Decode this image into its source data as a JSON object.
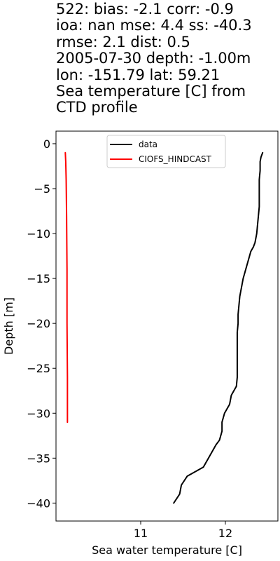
{
  "title_lines": [
    "522: bias: -2.1  corr: -0.9",
    "ioa: nan  mse: 4.4  ss: -40.3",
    "rmse: 2.1  dist: 0.5",
    "2005-07-30 depth: -1.00m",
    "lon: -151.79 lat: 59.21",
    "Sea temperature [C] from",
    "CTD profile"
  ],
  "chart_data": {
    "type": "line",
    "xlabel": "Sea water temperature [C]",
    "ylabel": "Depth [m]",
    "xlim": [
      10.0,
      12.62
    ],
    "ylim": [
      -42,
      1.4
    ],
    "xticks": [
      11,
      12
    ],
    "yticks": [
      0,
      -5,
      -10,
      -15,
      -20,
      -25,
      -30,
      -35,
      -40
    ],
    "legend_loc": "upper center",
    "series": [
      {
        "name": "data",
        "color": "#000000",
        "points": [
          [
            12.44,
            -1
          ],
          [
            12.42,
            -1.5
          ],
          [
            12.41,
            -2
          ],
          [
            12.41,
            -3
          ],
          [
            12.4,
            -4
          ],
          [
            12.4,
            -5
          ],
          [
            12.4,
            -6
          ],
          [
            12.4,
            -7
          ],
          [
            12.39,
            -8
          ],
          [
            12.38,
            -9
          ],
          [
            12.37,
            -10
          ],
          [
            12.35,
            -11
          ],
          [
            12.33,
            -11.5
          ],
          [
            12.3,
            -12
          ],
          [
            12.27,
            -13
          ],
          [
            12.24,
            -14
          ],
          [
            12.21,
            -15
          ],
          [
            12.19,
            -16
          ],
          [
            12.17,
            -17
          ],
          [
            12.16,
            -18
          ],
          [
            12.15,
            -19
          ],
          [
            12.15,
            -20
          ],
          [
            12.14,
            -21
          ],
          [
            12.14,
            -22
          ],
          [
            12.14,
            -23
          ],
          [
            12.14,
            -24
          ],
          [
            12.14,
            -25
          ],
          [
            12.14,
            -26
          ],
          [
            12.13,
            -27
          ],
          [
            12.1,
            -27.5
          ],
          [
            12.07,
            -28
          ],
          [
            12.05,
            -29
          ],
          [
            11.99,
            -30
          ],
          [
            11.96,
            -31
          ],
          [
            11.96,
            -32
          ],
          [
            11.93,
            -33
          ],
          [
            11.89,
            -33.5
          ],
          [
            11.86,
            -34
          ],
          [
            11.8,
            -35
          ],
          [
            11.74,
            -36
          ],
          [
            11.55,
            -37
          ],
          [
            11.48,
            -38
          ],
          [
            11.46,
            -39
          ],
          [
            11.39,
            -40
          ]
        ]
      },
      {
        "name": "CIOFS_HINDCAST",
        "color": "#ff0000",
        "points": [
          [
            10.11,
            -1
          ],
          [
            10.115,
            -2
          ],
          [
            10.12,
            -4
          ],
          [
            10.125,
            -8
          ],
          [
            10.13,
            -14
          ],
          [
            10.13,
            -20
          ],
          [
            10.135,
            -26
          ],
          [
            10.135,
            -31
          ]
        ]
      }
    ]
  }
}
